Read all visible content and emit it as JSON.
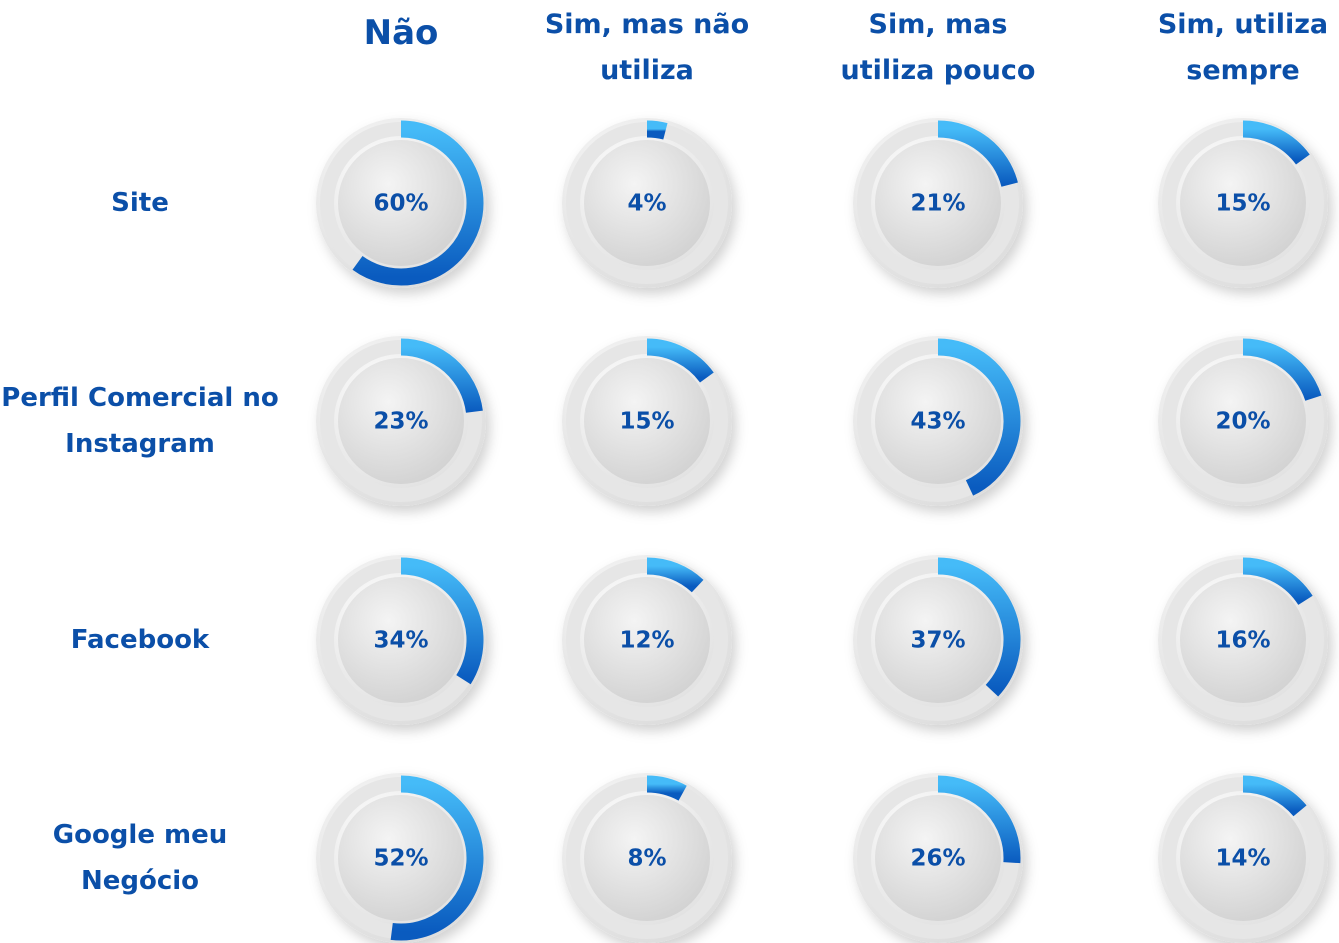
{
  "chart_data": {
    "type": "radial_progress",
    "categories": [
      "Site",
      "Perfil Comercial no Instagram",
      "Facebook",
      "Google meu Negócio"
    ],
    "series": [
      {
        "name": "Não",
        "values": [
          60,
          23,
          34,
          52
        ],
        "value_labels": [
          "60%",
          "23%",
          "34%",
          "52%"
        ]
      },
      {
        "name": "Sim, mas não utiliza",
        "values": [
          4,
          15,
          12,
          8
        ],
        "value_labels": [
          "4%",
          "15%",
          "12%",
          "8%"
        ]
      },
      {
        "name": "Sim, mas utiliza pouco",
        "values": [
          21,
          43,
          37,
          26
        ],
        "value_labels": [
          "21%",
          "43%",
          "37%",
          "26%"
        ]
      },
      {
        "name": "Sim, utiliza sempre",
        "values": [
          15,
          20,
          16,
          14
        ],
        "value_labels": [
          "15%",
          "20%",
          "16%",
          "14%"
        ]
      }
    ],
    "ylim": [
      0,
      100
    ],
    "colors": [
      "#45bbf8",
      "#0a5bbf"
    ]
  }
}
